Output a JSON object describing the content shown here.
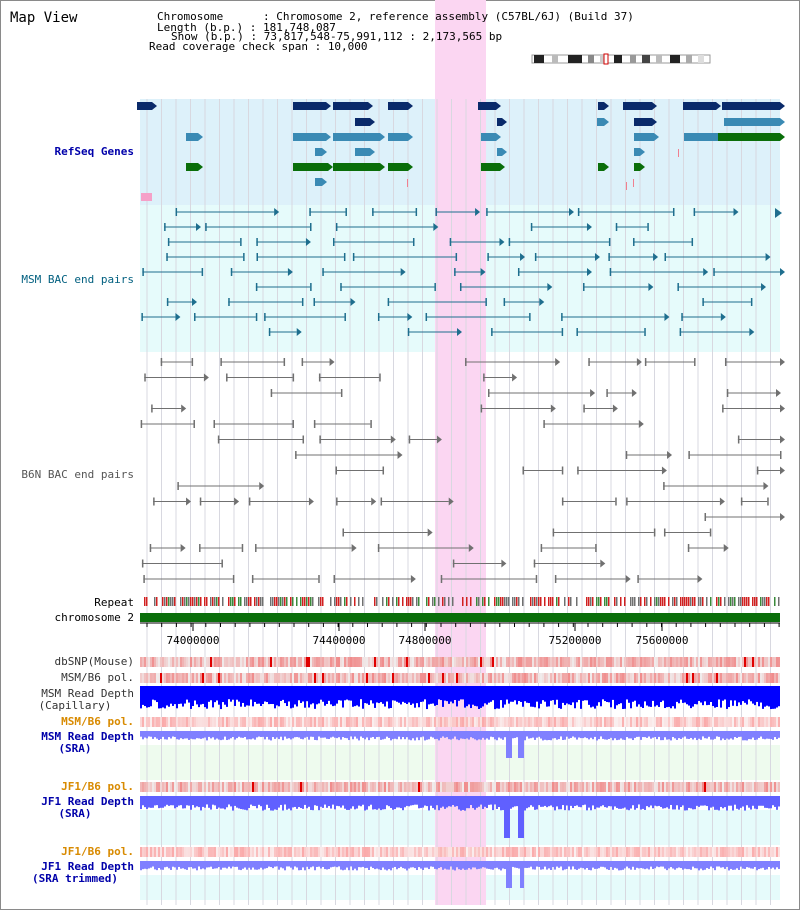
{
  "title": "Map View",
  "info": {
    "chromosome_label": "Chromosome      :",
    "chromosome_value": "Chromosome 2, reference assembly (C57BL/6J) (Build 37)",
    "length_label": "Length (b.p.) :",
    "length_value": "181,748,087",
    "show_label": "Show (b.p.) :",
    "show_value": "73,817,548-75,991,112 : 2,173,565 bp",
    "span_label": "Read coverage check span :",
    "span_value": "10,000"
  },
  "tracks": {
    "refseq": "RefSeq Genes",
    "msm_bac": "MSM BAC end pairs",
    "b6n_bac": "B6N BAC end pairs",
    "repeat": "Repeat",
    "chromosome": "chromosome 2",
    "dbsnp": "dbSNP(Mouse)",
    "msm_b6_pol_1": "MSM/B6 pol.",
    "msm_depth_cap_1": "MSM Read Depth",
    "msm_depth_cap_2": "(Capillary)",
    "msm_b6_pol_2": "MSM/B6 pol.",
    "msm_depth_sra_1": "MSM Read Depth",
    "msm_depth_sra_2": "(SRA)",
    "jf1_b6_pol_1": "JF1/B6 pol.",
    "jf1_depth_sra_1": "JF1 Read Depth",
    "jf1_depth_sra_2": "(SRA)",
    "jf1_b6_pol_2": "JF1/B6 pol.",
    "jf1_depth_trim_1": "JF1 Read Depth",
    "jf1_depth_trim_2": "(SRA trimmed)"
  },
  "axis": {
    "ticks": [
      "74000000",
      "74400000",
      "74800000",
      "75200000",
      "75600000"
    ]
  },
  "colors": {
    "refseq_bg": "#ddf1fa",
    "msm_bac_bg": "#e6fbfb",
    "highlight": "#fbd6f2",
    "chromosome_bar": "#0a6e0a",
    "label_blue": "#0000aa",
    "label_teal": "#005f7f",
    "label_orange": "#d88a00",
    "capillary_depth": "#0000ff",
    "sra_depth": "#8080ff"
  }
}
